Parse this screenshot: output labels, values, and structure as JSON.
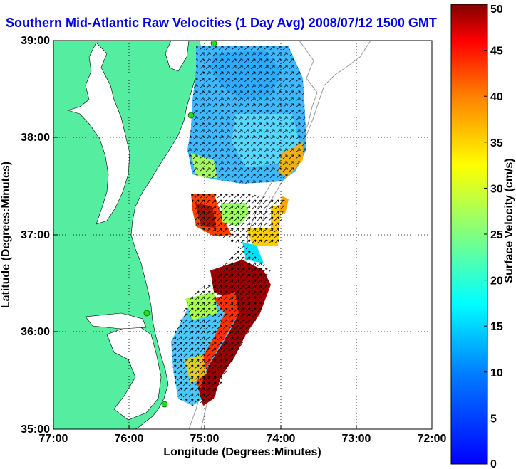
{
  "title": "Southern Mid-Atlantic Raw Velocities (1 Day Avg) 2008/07/12 1500 GMT",
  "xlabel": "Longitude (Degrees:Minutes)",
  "ylabel": "Latitude (Degrees:Minutes)",
  "xticks": [
    "77:00",
    "76:00",
    "75:00",
    "74:00",
    "73:00",
    "72:00"
  ],
  "yticks": [
    "39:00",
    "38:00",
    "37:00",
    "36:00",
    "35:00"
  ],
  "colorbar": {
    "label": "Surface Velocity (cm/s)",
    "ticks": [
      "0",
      "5",
      "10",
      "15",
      "20",
      "25",
      "30",
      "35",
      "40",
      "45",
      "50"
    ],
    "range": [
      0,
      50
    ]
  },
  "colors": {
    "land": "#55eda0",
    "title": "#0000e6",
    "station": "#22dd22"
  }
}
